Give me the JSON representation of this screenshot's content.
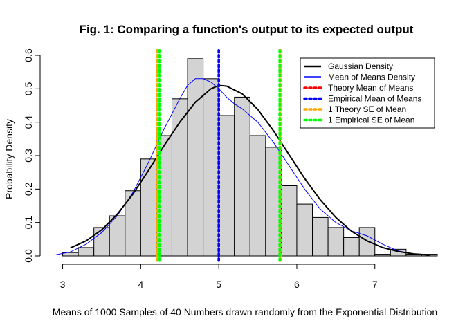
{
  "chart_data": {
    "type": "bar",
    "title": "Fig. 1: Comparing a function's output to its expected output",
    "xlabel": "Means of 1000 Samples of 40 Numbers drawn randomly from the Exponential Distribution",
    "ylabel": "Probability Density",
    "xlim": [
      2.8,
      7.8
    ],
    "ylim": [
      0,
      0.6
    ],
    "x_ticks": [
      3,
      4,
      5,
      6,
      7
    ],
    "y_ticks": [
      0.0,
      0.1,
      0.2,
      0.3,
      0.4,
      0.5,
      0.6
    ],
    "x_tick_labels": [
      "3",
      "4",
      "5",
      "6",
      "7"
    ],
    "y_tick_labels": [
      "0.0",
      "0.1",
      "0.2",
      "0.3",
      "0.4",
      "0.5",
      "0.6"
    ],
    "bin_width": 0.2,
    "bins": [
      {
        "x0": 3.0,
        "density": 0.01
      },
      {
        "x0": 3.2,
        "density": 0.025
      },
      {
        "x0": 3.4,
        "density": 0.085
      },
      {
        "x0": 3.6,
        "density": 0.12
      },
      {
        "x0": 3.8,
        "density": 0.195
      },
      {
        "x0": 4.0,
        "density": 0.29
      },
      {
        "x0": 4.2,
        "density": 0.36
      },
      {
        "x0": 4.4,
        "density": 0.47
      },
      {
        "x0": 4.6,
        "density": 0.59
      },
      {
        "x0": 4.8,
        "density": 0.53
      },
      {
        "x0": 5.0,
        "density": 0.42
      },
      {
        "x0": 5.2,
        "density": 0.475
      },
      {
        "x0": 5.4,
        "density": 0.36
      },
      {
        "x0": 5.6,
        "density": 0.325
      },
      {
        "x0": 5.8,
        "density": 0.21
      },
      {
        "x0": 6.0,
        "density": 0.155
      },
      {
        "x0": 6.2,
        "density": 0.115
      },
      {
        "x0": 6.4,
        "density": 0.085
      },
      {
        "x0": 6.6,
        "density": 0.055
      },
      {
        "x0": 6.8,
        "density": 0.085
      },
      {
        "x0": 7.0,
        "density": 0.005
      },
      {
        "x0": 7.2,
        "density": 0.02
      },
      {
        "x0": 7.4,
        "density": 0.005
      },
      {
        "x0": 7.6,
        "density": 0.005
      }
    ],
    "gaussian_curve": {
      "x": [
        3.1,
        3.3,
        3.5,
        3.7,
        3.9,
        4.1,
        4.3,
        4.5,
        4.7,
        4.9,
        5.0,
        5.1,
        5.3,
        5.5,
        5.7,
        5.9,
        6.1,
        6.3,
        6.5,
        6.7,
        6.9,
        7.1,
        7.3,
        7.5,
        7.7
      ],
      "y": [
        0.024,
        0.045,
        0.078,
        0.125,
        0.185,
        0.256,
        0.33,
        0.4,
        0.46,
        0.5,
        0.51,
        0.508,
        0.485,
        0.438,
        0.375,
        0.303,
        0.232,
        0.168,
        0.115,
        0.074,
        0.045,
        0.025,
        0.013,
        0.006,
        0.003
      ],
      "color": "#000000"
    },
    "means_density_curve": {
      "x": [
        2.9,
        3.1,
        3.3,
        3.5,
        3.7,
        3.9,
        4.1,
        4.3,
        4.5,
        4.6,
        4.7,
        4.8,
        4.9,
        5.0,
        5.1,
        5.2,
        5.3,
        5.5,
        5.7,
        5.9,
        6.1,
        6.3,
        6.5,
        6.7,
        6.9,
        7.1,
        7.3,
        7.5,
        7.7
      ],
      "y": [
        0.003,
        0.012,
        0.035,
        0.07,
        0.12,
        0.19,
        0.28,
        0.38,
        0.47,
        0.51,
        0.53,
        0.53,
        0.52,
        0.5,
        0.475,
        0.455,
        0.44,
        0.4,
        0.34,
        0.27,
        0.2,
        0.14,
        0.1,
        0.075,
        0.06,
        0.035,
        0.015,
        0.006,
        0.002
      ],
      "color": "#0000ff"
    },
    "vlines": [
      {
        "x": 5.0,
        "color": "#ff0000"
      },
      {
        "x": 5.0,
        "color": "#0000ff"
      },
      {
        "x": 4.21,
        "color": "#ffa500"
      },
      {
        "x": 5.79,
        "color": "#ffa500"
      },
      {
        "x": 4.24,
        "color": "#00ff00"
      },
      {
        "x": 5.78,
        "color": "#00ff00"
      }
    ],
    "legend": {
      "placement": "top-right",
      "entries": [
        {
          "label": "Gaussian Density",
          "color": "#000000",
          "style": "solid"
        },
        {
          "label": "Mean of Means Density",
          "color": "#0000ff",
          "style": "solid"
        },
        {
          "label": "Theory Mean of Means",
          "color": "#ff0000",
          "style": "dotted"
        },
        {
          "label": "Empirical Mean of Means",
          "color": "#0000ff",
          "style": "dotted"
        },
        {
          "label": "1 Theory SE of Mean",
          "color": "#ffa500",
          "style": "dotted"
        },
        {
          "label": "1 Empirical SE of Mean",
          "color": "#00ff00",
          "style": "dotted"
        }
      ]
    },
    "bar_fill": "#d3d3d3",
    "bar_stroke": "#000000"
  }
}
